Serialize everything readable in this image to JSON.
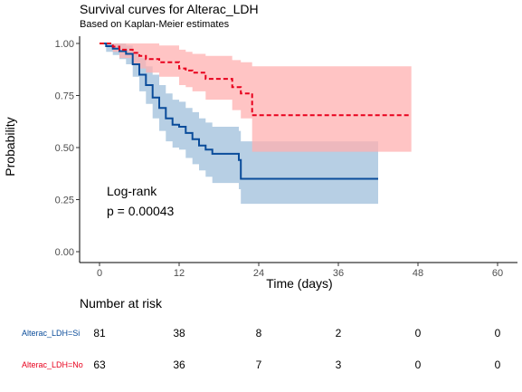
{
  "chart_data": {
    "type": "line",
    "title": "Survival curves for Alterac_LDH",
    "subtitle": "Based on Kaplan-Meier estimates",
    "xlabel": "Time (days)",
    "ylabel": "Probability",
    "xlim": [
      0,
      60
    ],
    "ylim": [
      0,
      1
    ],
    "x_ticks": [
      0,
      12,
      24,
      36,
      48,
      60
    ],
    "y_ticks": [
      "0.00",
      "0.25",
      "0.50",
      "0.75",
      "1.00"
    ],
    "y_tick_values": [
      0,
      0.25,
      0.5,
      0.75,
      1.0
    ],
    "annotation": [
      "Log-rank",
      "p = 0.00043"
    ],
    "series": [
      {
        "name": "Alterac_LDH=Si",
        "color": "#0a4c9a",
        "ci_color": "#9fbfdb",
        "line_style": "solid",
        "steps": [
          [
            0,
            1.0
          ],
          [
            1,
            0.987
          ],
          [
            2,
            0.975
          ],
          [
            3,
            0.963
          ],
          [
            4,
            0.95
          ],
          [
            5,
            0.9
          ],
          [
            6,
            0.85
          ],
          [
            7,
            0.8
          ],
          [
            8,
            0.74
          ],
          [
            9,
            0.69
          ],
          [
            10,
            0.64
          ],
          [
            11,
            0.61
          ],
          [
            12,
            0.6
          ],
          [
            13,
            0.57
          ],
          [
            14,
            0.54
          ],
          [
            15,
            0.51
          ],
          [
            16,
            0.49
          ],
          [
            17,
            0.47
          ],
          [
            21,
            0.44
          ],
          [
            21.3,
            0.35
          ],
          [
            42,
            0.35
          ]
        ],
        "ci_lower": [
          [
            0,
            1.0
          ],
          [
            1,
            0.96
          ],
          [
            2,
            0.945
          ],
          [
            3,
            0.925
          ],
          [
            4,
            0.9
          ],
          [
            5,
            0.84
          ],
          [
            6,
            0.77
          ],
          [
            7,
            0.71
          ],
          [
            8,
            0.64
          ],
          [
            9,
            0.58
          ],
          [
            10,
            0.53
          ],
          [
            11,
            0.5
          ],
          [
            12,
            0.49
          ],
          [
            13,
            0.45
          ],
          [
            14,
            0.42
          ],
          [
            15,
            0.39
          ],
          [
            16,
            0.36
          ],
          [
            17,
            0.33
          ],
          [
            21,
            0.3
          ],
          [
            21.3,
            0.23
          ],
          [
            42,
            0.23
          ]
        ],
        "ci_upper": [
          [
            0,
            1.0
          ],
          [
            1,
            1.0
          ],
          [
            2,
            1.0
          ],
          [
            3,
            1.0
          ],
          [
            4,
            0.99
          ],
          [
            5,
            0.96
          ],
          [
            6,
            0.93
          ],
          [
            7,
            0.89
          ],
          [
            8,
            0.85
          ],
          [
            9,
            0.8
          ],
          [
            10,
            0.76
          ],
          [
            11,
            0.73
          ],
          [
            12,
            0.72
          ],
          [
            13,
            0.69
          ],
          [
            14,
            0.67
          ],
          [
            15,
            0.64
          ],
          [
            16,
            0.62
          ],
          [
            17,
            0.6
          ],
          [
            21,
            0.58
          ],
          [
            21.3,
            0.53
          ],
          [
            42,
            0.53
          ]
        ]
      },
      {
        "name": "Alterac_LDH=No",
        "color": "#e8001c",
        "ci_color": "#ffb0b0",
        "line_style": "dashed",
        "steps": [
          [
            0,
            1.0
          ],
          [
            2,
            0.985
          ],
          [
            3,
            0.97
          ],
          [
            5,
            0.955
          ],
          [
            6,
            0.94
          ],
          [
            7,
            0.925
          ],
          [
            9,
            0.91
          ],
          [
            12,
            0.88
          ],
          [
            13,
            0.87
          ],
          [
            14,
            0.86
          ],
          [
            16,
            0.83
          ],
          [
            20,
            0.79
          ],
          [
            21.3,
            0.76
          ],
          [
            23,
            0.655
          ],
          [
            47,
            0.655
          ]
        ],
        "ci_lower": [
          [
            0,
            1.0
          ],
          [
            2,
            0.96
          ],
          [
            3,
            0.93
          ],
          [
            5,
            0.9
          ],
          [
            6,
            0.88
          ],
          [
            7,
            0.86
          ],
          [
            9,
            0.84
          ],
          [
            12,
            0.8
          ],
          [
            13,
            0.79
          ],
          [
            14,
            0.77
          ],
          [
            16,
            0.73
          ],
          [
            20,
            0.68
          ],
          [
            21.3,
            0.64
          ],
          [
            23,
            0.48
          ],
          [
            47,
            0.48
          ]
        ],
        "ci_upper": [
          [
            0,
            1.0
          ],
          [
            2,
            1.0
          ],
          [
            3,
            1.0
          ],
          [
            5,
            1.0
          ],
          [
            6,
            1.0
          ],
          [
            7,
            1.0
          ],
          [
            9,
            0.99
          ],
          [
            12,
            0.97
          ],
          [
            13,
            0.96
          ],
          [
            14,
            0.95
          ],
          [
            16,
            0.94
          ],
          [
            20,
            0.92
          ],
          [
            21.3,
            0.91
          ],
          [
            23,
            0.89
          ],
          [
            47,
            0.89
          ]
        ]
      }
    ],
    "risk_table": {
      "title": "Number at risk",
      "times": [
        0,
        12,
        24,
        36,
        48,
        60
      ],
      "rows": [
        {
          "label": "Alterac_LDH=Si",
          "color": "#0a4c9a",
          "values": [
            "81",
            "38",
            "8",
            "2",
            "0",
            "0"
          ]
        },
        {
          "label": "Alterac_LDH=No",
          "color": "#e8001c",
          "values": [
            "63",
            "36",
            "7",
            "3",
            "0",
            "0"
          ]
        }
      ]
    }
  }
}
